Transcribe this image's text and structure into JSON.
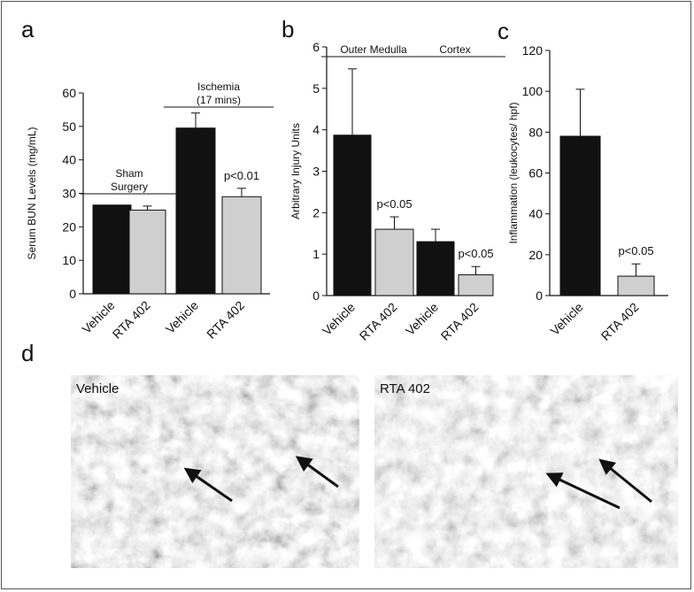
{
  "panels": {
    "a": {
      "letter": "a"
    },
    "b": {
      "letter": "b"
    },
    "c": {
      "letter": "c"
    },
    "d": {
      "letter": "d"
    }
  },
  "chart_data": [
    {
      "id": "a",
      "type": "bar",
      "ylabel": "Serum BUN Levels (mg/mL)",
      "ylim": [
        0,
        60
      ],
      "yticks": [
        0,
        10,
        20,
        30,
        40,
        50,
        60
      ],
      "categories": [
        "Vehicle",
        "RTA 402",
        "Vehicle",
        "RTA 402"
      ],
      "values": [
        26.5,
        25,
        49.5,
        29
      ],
      "errors": [
        0,
        1.2,
        4.5,
        2.5
      ],
      "colors": [
        "#111111",
        "#cfcfcf",
        "#111111",
        "#cfcfcf"
      ],
      "groups": [
        {
          "label_lines": [
            "Sham",
            "Surgery"
          ],
          "span": [
            0,
            1
          ]
        },
        {
          "label_lines": [
            "Ischemia",
            "(17 mins)"
          ],
          "span": [
            2,
            3
          ]
        }
      ],
      "annotations": [
        {
          "text": "p<0.01",
          "bar": 3
        }
      ]
    },
    {
      "id": "b",
      "type": "bar",
      "ylabel": "Arbitrary Injury Units",
      "ylim": [
        0,
        6
      ],
      "yticks": [
        0,
        1,
        2,
        3,
        4,
        5,
        6
      ],
      "categories": [
        "Vehicle",
        "RTA 402",
        "Vehicle",
        "RTA 402"
      ],
      "values": [
        3.87,
        1.6,
        1.3,
        0.5
      ],
      "errors": [
        1.6,
        0.3,
        0.3,
        0.2
      ],
      "colors": [
        "#111111",
        "#cfcfcf",
        "#111111",
        "#cfcfcf"
      ],
      "groups": [
        {
          "label_lines": [
            "Outer Medulla"
          ],
          "span": [
            0,
            1
          ]
        },
        {
          "label_lines": [
            "Cortex"
          ],
          "span": [
            2,
            3
          ]
        }
      ],
      "annotations": [
        {
          "text": "p<0.05",
          "bar": 1
        },
        {
          "text": "p<0.05",
          "bar": 3
        }
      ]
    },
    {
      "id": "c",
      "type": "bar",
      "ylabel": "Inflammation (leukocytes/ hpf)",
      "ylim": [
        0,
        120
      ],
      "yticks": [
        0,
        20,
        40,
        60,
        80,
        100,
        120
      ],
      "categories": [
        "Vehicle",
        "RTA 402"
      ],
      "values": [
        78,
        9.5
      ],
      "errors": [
        23,
        6
      ],
      "colors": [
        "#111111",
        "#cfcfcf"
      ],
      "groups": [],
      "annotations": [
        {
          "text": "p<0.05",
          "bar": 1
        }
      ]
    }
  ],
  "micrographs": [
    {
      "label": "Vehicle",
      "arrow_count": 2
    },
    {
      "label": "RTA 402",
      "arrow_count": 2
    }
  ]
}
